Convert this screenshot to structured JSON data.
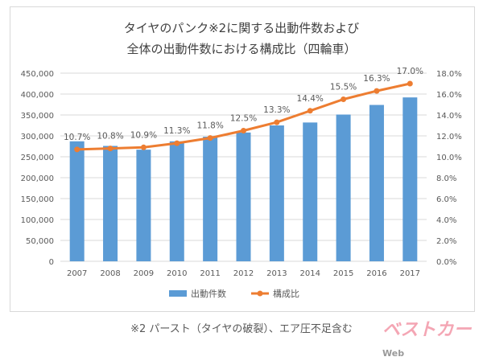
{
  "chart_data": {
    "type": "bar+line",
    "title": [
      "タイヤのパンク※2に関する出動件数および",
      "全体の出動件数における構成比（四輪車）"
    ],
    "categories": [
      "2007",
      "2008",
      "2009",
      "2010",
      "2011",
      "2012",
      "2013",
      "2014",
      "2015",
      "2016",
      "2017"
    ],
    "series": [
      {
        "name": "出動件数",
        "type": "bar",
        "axis": "left",
        "color": "#5b9bd5",
        "values": [
          287000,
          276000,
          267000,
          287000,
          298000,
          308000,
          325000,
          332000,
          351000,
          374000,
          392000
        ]
      },
      {
        "name": "構成比",
        "type": "line",
        "axis": "right",
        "color": "#ed7d31",
        "values": [
          10.7,
          10.8,
          10.9,
          11.3,
          11.8,
          12.5,
          13.3,
          14.4,
          15.5,
          16.3,
          17.0
        ],
        "labels": [
          "10.7%",
          "10.8%",
          "10.9%",
          "11.3%",
          "11.8%",
          "12.5%",
          "13.3%",
          "14.4%",
          "15.5%",
          "16.3%",
          "17.0%"
        ]
      }
    ],
    "y_left": {
      "range": [
        0,
        450000
      ],
      "ticks": [
        "0",
        "50,000",
        "100,000",
        "150,000",
        "200,000",
        "250,000",
        "300,000",
        "350,000",
        "400,000",
        "450,000"
      ]
    },
    "y_right": {
      "range": [
        0,
        18
      ],
      "ticks": [
        "0.0%",
        "2.0%",
        "4.0%",
        "6.0%",
        "8.0%",
        "10.0%",
        "12.0%",
        "14.0%",
        "16.0%",
        "18.0%"
      ]
    },
    "grid": true,
    "legend": "bottom"
  },
  "note": "※2 パースト（タイヤの破裂）、エア圧不足含む",
  "logo": {
    "text": "ベストカー",
    "suffix": "Web"
  }
}
